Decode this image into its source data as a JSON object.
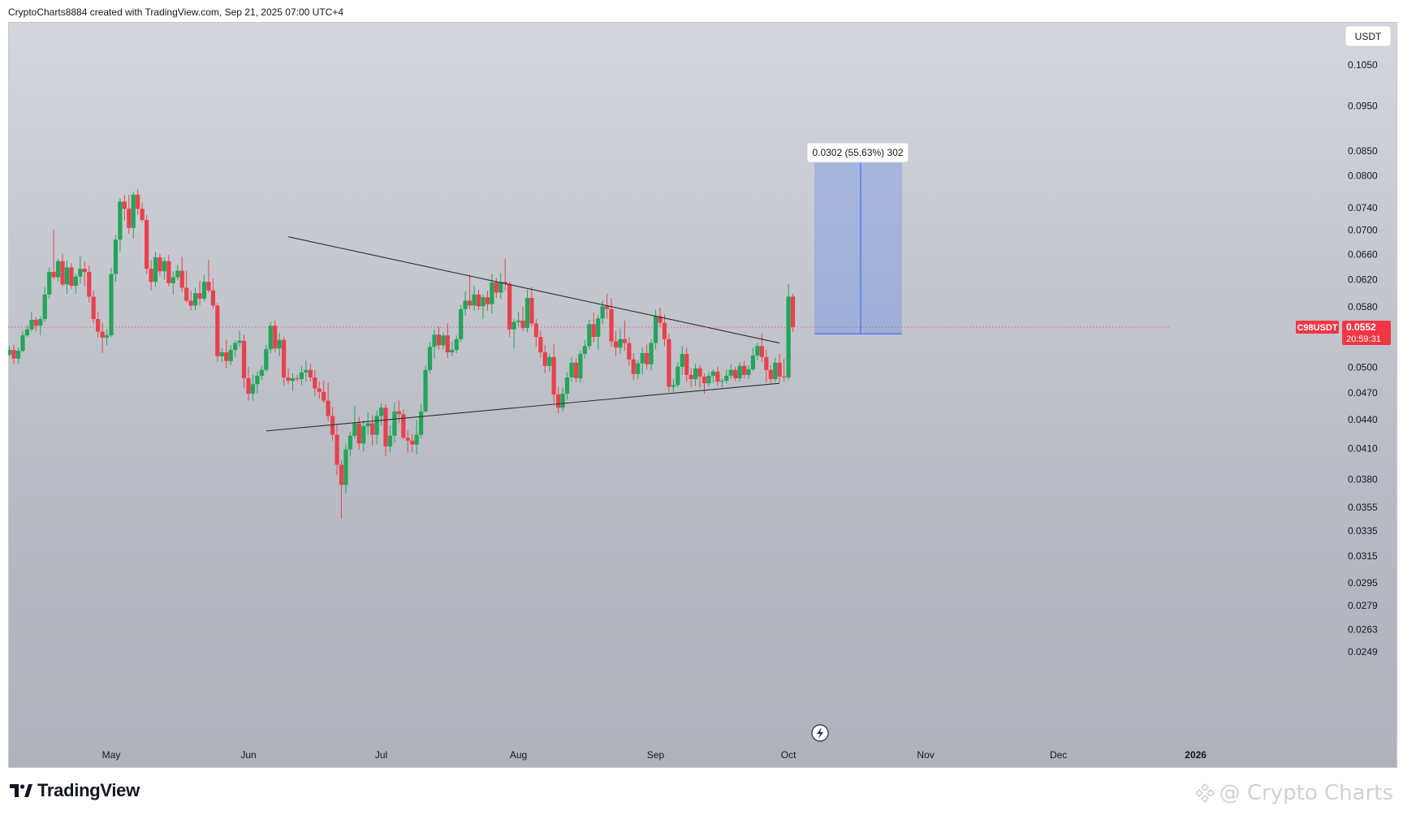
{
  "header": {
    "attribution": "CryptoCharts8884 created with TradingView.com, Sep 21, 2025 07:00 UTC+4"
  },
  "footer": {
    "logo_text": "TradingView",
    "watermark": "@ Crypto Charts"
  },
  "colors": {
    "up": "#26a69a",
    "down": "#ef5350",
    "bullet_up": "#22a55a",
    "bullet_down": "#e8414d",
    "measure": "#2962ff",
    "price_tag": "#f23645"
  },
  "chart_data": {
    "type": "candlestick",
    "symbol": "C98USDT",
    "currency": "USDT",
    "last_price": "0.0552",
    "countdown": "20:59:31",
    "y_scale": "log",
    "y_ticks": [
      "0.1050",
      "0.0950",
      "0.0850",
      "0.0800",
      "0.0740",
      "0.0700",
      "0.0660",
      "0.0620",
      "0.0580",
      "0.0500",
      "0.0470",
      "0.0440",
      "0.0410",
      "0.0380",
      "0.0355",
      "0.0335",
      "0.0315",
      "0.0295",
      "0.0279",
      "0.0263",
      "0.0249"
    ],
    "x_ticks": [
      "May",
      "Jun",
      "Jul",
      "Aug",
      "Sep",
      "Oct",
      "Nov",
      "Dec",
      "2026"
    ],
    "measure_label": "0.0302 (55.63%) 302",
    "measure": {
      "from": 0.0543,
      "to": 0.0845
    },
    "lines": [
      {
        "name": "upper-trendline",
        "start": [
          "2025-06-10",
          0.0689
        ],
        "end": [
          "2025-09-29",
          0.0531
        ]
      },
      {
        "name": "lower-trendline",
        "start": [
          "2025-06-05",
          0.0428
        ],
        "end": [
          "2025-09-29",
          0.0481
        ]
      }
    ],
    "start_date": "2025-04-01",
    "candles": [
      [
        0.051,
        0.0515,
        0.048,
        0.0489
      ],
      [
        0.0489,
        0.0528,
        0.0477,
        0.0525
      ],
      [
        0.0525,
        0.0545,
        0.0519,
        0.0539
      ],
      [
        0.0539,
        0.0574,
        0.0529,
        0.0564
      ],
      [
        0.0564,
        0.0571,
        0.0545,
        0.0552
      ],
      [
        0.0552,
        0.0559,
        0.0513,
        0.0525
      ],
      [
        0.0525,
        0.0536,
        0.0507,
        0.0516
      ],
      [
        0.0516,
        0.0527,
        0.0514,
        0.0522
      ],
      [
        0.0522,
        0.0529,
        0.0504,
        0.0511
      ],
      [
        0.0511,
        0.0525,
        0.0505,
        0.0521
      ],
      [
        0.0521,
        0.0547,
        0.0519,
        0.0541
      ],
      [
        0.0541,
        0.0554,
        0.0539,
        0.0549
      ],
      [
        0.0549,
        0.0573,
        0.0546,
        0.0562
      ],
      [
        0.0562,
        0.0566,
        0.0546,
        0.0554
      ],
      [
        0.0554,
        0.0567,
        0.0541,
        0.0563
      ],
      [
        0.0563,
        0.0609,
        0.0559,
        0.0598
      ],
      [
        0.0598,
        0.0639,
        0.0592,
        0.0632
      ],
      [
        0.0632,
        0.0701,
        0.0621,
        0.0624
      ],
      [
        0.0624,
        0.0653,
        0.0617,
        0.0649
      ],
      [
        0.0649,
        0.0661,
        0.061,
        0.0613
      ],
      [
        0.0613,
        0.065,
        0.0599,
        0.0639
      ],
      [
        0.0639,
        0.0646,
        0.0606,
        0.0611
      ],
      [
        0.0611,
        0.0629,
        0.0599,
        0.0625
      ],
      [
        0.0625,
        0.0657,
        0.0614,
        0.0637
      ],
      [
        0.0637,
        0.0649,
        0.061,
        0.0632
      ],
      [
        0.0632,
        0.0642,
        0.0586,
        0.0595
      ],
      [
        0.0595,
        0.0604,
        0.0557,
        0.0563
      ],
      [
        0.0563,
        0.0573,
        0.0538,
        0.0546
      ],
      [
        0.0546,
        0.0558,
        0.0518,
        0.0538
      ],
      [
        0.0538,
        0.0549,
        0.0528,
        0.0541
      ],
      [
        0.0541,
        0.0638,
        0.0538,
        0.0629
      ],
      [
        0.0629,
        0.0692,
        0.0617,
        0.0684
      ],
      [
        0.0684,
        0.0757,
        0.0664,
        0.0751
      ],
      [
        0.0751,
        0.0763,
        0.0717,
        0.0738
      ],
      [
        0.0738,
        0.0764,
        0.0694,
        0.0704
      ],
      [
        0.0704,
        0.0769,
        0.0686,
        0.0764
      ],
      [
        0.0764,
        0.0774,
        0.0727,
        0.0738
      ],
      [
        0.0738,
        0.0749,
        0.0714,
        0.0718
      ],
      [
        0.0718,
        0.0727,
        0.0629,
        0.0637
      ],
      [
        0.0637,
        0.0651,
        0.0604,
        0.0617
      ],
      [
        0.0617,
        0.0664,
        0.0609,
        0.0655
      ],
      [
        0.0655,
        0.0661,
        0.0625,
        0.0633
      ],
      [
        0.0633,
        0.0655,
        0.062,
        0.0649
      ],
      [
        0.0649,
        0.0659,
        0.061,
        0.0615
      ],
      [
        0.0615,
        0.0633,
        0.0598,
        0.0624
      ],
      [
        0.0624,
        0.0643,
        0.0619,
        0.0634
      ],
      [
        0.0634,
        0.0656,
        0.0602,
        0.0608
      ],
      [
        0.0608,
        0.0634,
        0.0586,
        0.0589
      ],
      [
        0.0589,
        0.0604,
        0.0575,
        0.0582
      ],
      [
        0.0582,
        0.0608,
        0.0575,
        0.06
      ],
      [
        0.06,
        0.0618,
        0.0582,
        0.0592
      ],
      [
        0.0592,
        0.0627,
        0.0589,
        0.0617
      ],
      [
        0.0617,
        0.0651,
        0.0601,
        0.0604
      ],
      [
        0.0604,
        0.0622,
        0.0577,
        0.0582
      ],
      [
        0.0582,
        0.0586,
        0.0507,
        0.0514
      ],
      [
        0.0514,
        0.0524,
        0.0507,
        0.0519
      ],
      [
        0.0519,
        0.0535,
        0.0499,
        0.0508
      ],
      [
        0.0508,
        0.0528,
        0.0503,
        0.0522
      ],
      [
        0.0522,
        0.0535,
        0.0513,
        0.0531
      ],
      [
        0.0531,
        0.0547,
        0.0526,
        0.0534
      ],
      [
        0.0534,
        0.0542,
        0.0475,
        0.0487
      ],
      [
        0.0487,
        0.0501,
        0.0461,
        0.0469
      ],
      [
        0.0469,
        0.0491,
        0.0461,
        0.048
      ],
      [
        0.048,
        0.0495,
        0.0469,
        0.049
      ],
      [
        0.049,
        0.0502,
        0.0485,
        0.0497
      ],
      [
        0.0497,
        0.0529,
        0.0495,
        0.0523
      ],
      [
        0.0523,
        0.0559,
        0.0518,
        0.0554
      ],
      [
        0.0554,
        0.0561,
        0.0519,
        0.0524
      ],
      [
        0.0524,
        0.0544,
        0.0514,
        0.0535
      ],
      [
        0.0535,
        0.0539,
        0.0478,
        0.0488
      ],
      [
        0.0488,
        0.0499,
        0.048,
        0.0484
      ],
      [
        0.0484,
        0.0493,
        0.0472,
        0.0487
      ],
      [
        0.0487,
        0.0491,
        0.0483,
        0.0486
      ],
      [
        0.0486,
        0.0502,
        0.0479,
        0.0494
      ],
      [
        0.0494,
        0.0509,
        0.0483,
        0.0497
      ],
      [
        0.0497,
        0.0505,
        0.0483,
        0.0488
      ],
      [
        0.0488,
        0.0497,
        0.0466,
        0.0475
      ],
      [
        0.0475,
        0.0483,
        0.0463,
        0.0471
      ],
      [
        0.0471,
        0.0484,
        0.0458,
        0.0461
      ],
      [
        0.0461,
        0.0482,
        0.0438,
        0.0444
      ],
      [
        0.0444,
        0.0454,
        0.0418,
        0.0424
      ],
      [
        0.0424,
        0.0436,
        0.0384,
        0.0394
      ],
      [
        0.0394,
        0.0398,
        0.0345,
        0.0375
      ],
      [
        0.0375,
        0.0415,
        0.0367,
        0.0409
      ],
      [
        0.0409,
        0.0427,
        0.0402,
        0.0423
      ],
      [
        0.0423,
        0.0455,
        0.042,
        0.0436
      ],
      [
        0.0436,
        0.0443,
        0.0409,
        0.0415
      ],
      [
        0.0415,
        0.0439,
        0.0407,
        0.0433
      ],
      [
        0.0433,
        0.0448,
        0.0424,
        0.0436
      ],
      [
        0.0436,
        0.0445,
        0.0413,
        0.0424
      ],
      [
        0.0424,
        0.045,
        0.0414,
        0.0444
      ],
      [
        0.0444,
        0.0458,
        0.0434,
        0.0453
      ],
      [
        0.0453,
        0.0457,
        0.0402,
        0.0412
      ],
      [
        0.0412,
        0.0434,
        0.0406,
        0.0423
      ],
      [
        0.0423,
        0.0459,
        0.0416,
        0.0449
      ],
      [
        0.0449,
        0.0461,
        0.0436,
        0.0446
      ],
      [
        0.0446,
        0.0451,
        0.0419,
        0.0421
      ],
      [
        0.0421,
        0.0429,
        0.0406,
        0.0418
      ],
      [
        0.0418,
        0.0425,
        0.0406,
        0.0414
      ],
      [
        0.0414,
        0.044,
        0.0404,
        0.0424
      ],
      [
        0.0424,
        0.0457,
        0.042,
        0.0449
      ],
      [
        0.0449,
        0.0502,
        0.0448,
        0.0497
      ],
      [
        0.0497,
        0.0532,
        0.0493,
        0.0526
      ],
      [
        0.0526,
        0.0549,
        0.0511,
        0.0542
      ],
      [
        0.0542,
        0.0553,
        0.0522,
        0.0528
      ],
      [
        0.0528,
        0.0545,
        0.0523,
        0.0541
      ],
      [
        0.0541,
        0.0557,
        0.0512,
        0.0519
      ],
      [
        0.0519,
        0.0533,
        0.0514,
        0.0522
      ],
      [
        0.0522,
        0.0541,
        0.0518,
        0.0536
      ],
      [
        0.0536,
        0.0583,
        0.0532,
        0.0577
      ],
      [
        0.0577,
        0.0603,
        0.0568,
        0.0589
      ],
      [
        0.0589,
        0.0628,
        0.0577,
        0.0582
      ],
      [
        0.0582,
        0.0611,
        0.0575,
        0.0598
      ],
      [
        0.0598,
        0.0605,
        0.0576,
        0.0581
      ],
      [
        0.0581,
        0.0598,
        0.0563,
        0.0594
      ],
      [
        0.0594,
        0.0604,
        0.0575,
        0.0584
      ],
      [
        0.0584,
        0.0629,
        0.0571,
        0.0616
      ],
      [
        0.0616,
        0.0623,
        0.0593,
        0.0601
      ],
      [
        0.0601,
        0.0631,
        0.0592,
        0.0617
      ],
      [
        0.0617,
        0.0653,
        0.0604,
        0.0614
      ],
      [
        0.0614,
        0.0617,
        0.0539,
        0.0549
      ],
      [
        0.0549,
        0.0563,
        0.0524,
        0.0559
      ],
      [
        0.0559,
        0.0573,
        0.0553,
        0.0561
      ],
      [
        0.0561,
        0.058,
        0.0547,
        0.0551
      ],
      [
        0.0551,
        0.0605,
        0.0545,
        0.0593
      ],
      [
        0.0593,
        0.0609,
        0.0553,
        0.0557
      ],
      [
        0.0557,
        0.0563,
        0.0526,
        0.0539
      ],
      [
        0.0539,
        0.0548,
        0.0512,
        0.0519
      ],
      [
        0.0519,
        0.0528,
        0.0493,
        0.0502
      ],
      [
        0.0502,
        0.0517,
        0.0495,
        0.0513
      ],
      [
        0.0513,
        0.0529,
        0.0459,
        0.0468
      ],
      [
        0.0468,
        0.0477,
        0.0447,
        0.0453
      ],
      [
        0.0453,
        0.0476,
        0.0449,
        0.0469
      ],
      [
        0.0469,
        0.0494,
        0.0462,
        0.0488
      ],
      [
        0.0488,
        0.0513,
        0.0483,
        0.0506
      ],
      [
        0.0506,
        0.0511,
        0.0482,
        0.0487
      ],
      [
        0.0487,
        0.0521,
        0.0482,
        0.0517
      ],
      [
        0.0517,
        0.0535,
        0.0511,
        0.0527
      ],
      [
        0.0527,
        0.0562,
        0.0523,
        0.0556
      ],
      [
        0.0556,
        0.0572,
        0.0532,
        0.0539
      ],
      [
        0.0539,
        0.0569,
        0.0522,
        0.0564
      ],
      [
        0.0564,
        0.0589,
        0.0556,
        0.0581
      ],
      [
        0.0581,
        0.0599,
        0.0564,
        0.0577
      ],
      [
        0.0577,
        0.0593,
        0.0526,
        0.0533
      ],
      [
        0.0533,
        0.0547,
        0.0514,
        0.0525
      ],
      [
        0.0525,
        0.055,
        0.0517,
        0.0536
      ],
      [
        0.0536,
        0.0561,
        0.0521,
        0.0531
      ],
      [
        0.0531,
        0.0539,
        0.0502,
        0.051
      ],
      [
        0.051,
        0.0518,
        0.0485,
        0.0492
      ],
      [
        0.0492,
        0.0509,
        0.0486,
        0.0505
      ],
      [
        0.0505,
        0.0525,
        0.0492,
        0.0518
      ],
      [
        0.0518,
        0.0529,
        0.0498,
        0.0504
      ],
      [
        0.0504,
        0.0536,
        0.0497,
        0.0531
      ],
      [
        0.0531,
        0.0576,
        0.0523,
        0.0567
      ],
      [
        0.0567,
        0.0579,
        0.0552,
        0.0558
      ],
      [
        0.0558,
        0.0569,
        0.0527,
        0.0536
      ],
      [
        0.0536,
        0.0543,
        0.0471,
        0.0477
      ],
      [
        0.0477,
        0.0486,
        0.0471,
        0.0479
      ],
      [
        0.0479,
        0.0507,
        0.0476,
        0.0501
      ],
      [
        0.0501,
        0.0527,
        0.0491,
        0.0517
      ],
      [
        0.0517,
        0.0525,
        0.0483,
        0.0491
      ],
      [
        0.0491,
        0.0499,
        0.0477,
        0.0486
      ],
      [
        0.0486,
        0.0505,
        0.0478,
        0.0499
      ],
      [
        0.0499,
        0.0503,
        0.0476,
        0.0489
      ],
      [
        0.0489,
        0.0493,
        0.0469,
        0.0481
      ],
      [
        0.0481,
        0.0495,
        0.0477,
        0.049
      ],
      [
        0.049,
        0.0498,
        0.0482,
        0.0495
      ],
      [
        0.0495,
        0.0501,
        0.0478,
        0.0483
      ],
      [
        0.0483,
        0.0487,
        0.0476,
        0.0484
      ],
      [
        0.0484,
        0.0497,
        0.0481,
        0.049
      ],
      [
        0.049,
        0.0504,
        0.0486,
        0.0497
      ],
      [
        0.0497,
        0.0501,
        0.0484,
        0.0487
      ],
      [
        0.0487,
        0.0506,
        0.0483,
        0.0502
      ],
      [
        0.0502,
        0.0508,
        0.0487,
        0.0491
      ],
      [
        0.0491,
        0.0503,
        0.0486,
        0.0498
      ],
      [
        0.0498,
        0.0525,
        0.0496,
        0.0515
      ],
      [
        0.0515,
        0.0531,
        0.0509,
        0.0527
      ],
      [
        0.0527,
        0.0543,
        0.0507,
        0.0513
      ],
      [
        0.0513,
        0.0522,
        0.0482,
        0.0497
      ],
      [
        0.0497,
        0.0503,
        0.0481,
        0.0486
      ],
      [
        0.0486,
        0.0512,
        0.0482,
        0.0506
      ],
      [
        0.0506,
        0.0517,
        0.0482,
        0.0489
      ],
      [
        0.0489,
        0.0511,
        0.0483,
        0.0488
      ],
      [
        0.0488,
        0.0614,
        0.0485,
        0.0595
      ],
      [
        0.0595,
        0.0599,
        0.0546,
        0.0552
      ]
    ]
  }
}
